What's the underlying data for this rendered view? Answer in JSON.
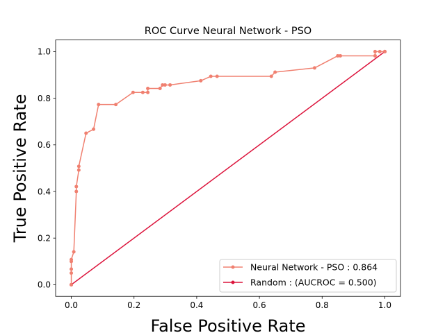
{
  "chart_data": {
    "type": "line",
    "title": "ROC Curve Neural Network - PSO",
    "xlabel": "False Positive Rate",
    "ylabel": "True Positive Rate",
    "xlim": [
      -0.05,
      1.05
    ],
    "ylim": [
      -0.05,
      1.05
    ],
    "xticks": [
      "0.0",
      "0.2",
      "0.4",
      "0.6",
      "0.8",
      "1.0"
    ],
    "yticks": [
      "0.0",
      "0.2",
      "0.4",
      "0.6",
      "0.8",
      "1.0"
    ],
    "grid": false,
    "legend_position": "lower-right",
    "series": [
      {
        "name": "Neural Network - PSO : 0.864",
        "color": "#f08070",
        "marker": "circle",
        "x": [
          0.0,
          0.0,
          0.0,
          0.0,
          0.0,
          0.008,
          0.016,
          0.016,
          0.024,
          0.024,
          0.047,
          0.071,
          0.087,
          0.142,
          0.197,
          0.228,
          0.244,
          0.244,
          0.283,
          0.291,
          0.299,
          0.315,
          0.413,
          0.445,
          0.465,
          0.638,
          0.65,
          0.776,
          0.85,
          0.858,
          0.969,
          0.969,
          0.984,
          1.0
        ],
        "y": [
          0.0,
          0.05,
          0.067,
          0.1,
          0.108,
          0.141,
          0.4,
          0.421,
          0.492,
          0.508,
          0.65,
          0.667,
          0.773,
          0.773,
          0.825,
          0.825,
          0.825,
          0.842,
          0.842,
          0.857,
          0.857,
          0.857,
          0.875,
          0.894,
          0.894,
          0.894,
          0.912,
          0.93,
          0.982,
          0.982,
          0.982,
          1.0,
          1.0,
          1.0
        ]
      },
      {
        "name": "Random : (AUCROC = 0.500)",
        "color": "#dc143c",
        "marker": "circle",
        "x": [
          0.0,
          1.0
        ],
        "y": [
          0.0,
          1.0
        ]
      }
    ]
  }
}
